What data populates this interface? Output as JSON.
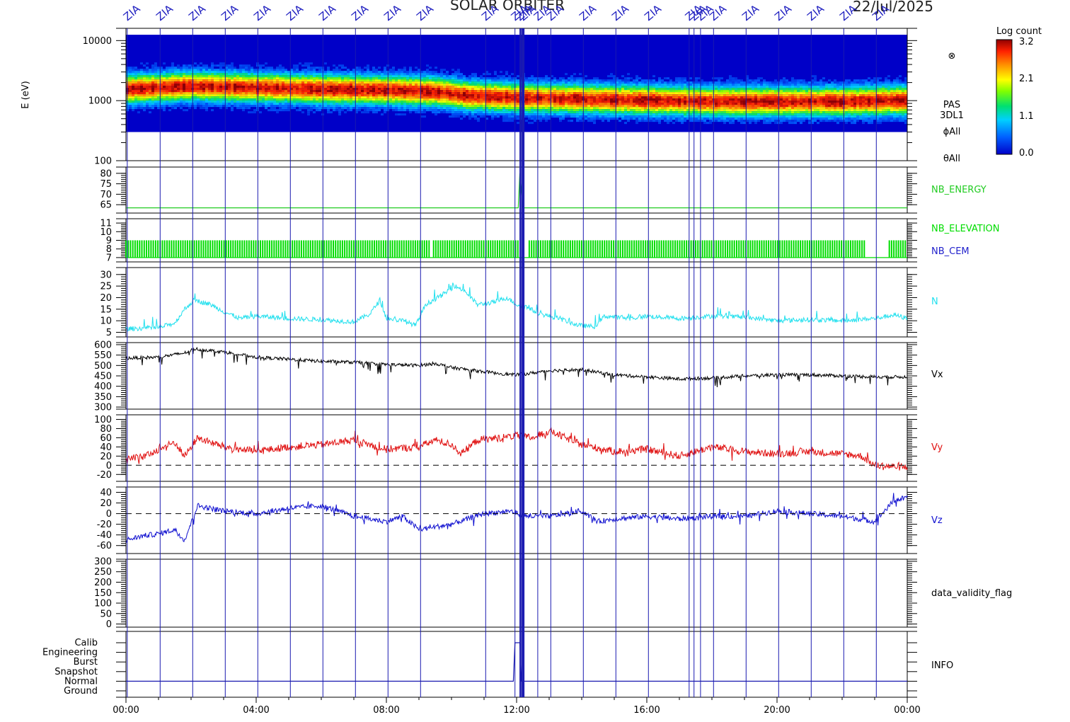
{
  "header": {
    "title": "SOLAR ORBITER",
    "date": "22/Jul/2025",
    "event_label": "ZIA"
  },
  "colorbar": {
    "title": "Log count",
    "ticks": [
      "3.2",
      "2.1",
      "1.1",
      "0.0"
    ]
  },
  "colors": {
    "event_line": "#1a1ab0",
    "nb_energy": "#22cc22",
    "nb_elevation": "#00dd00",
    "nb_cem": "#2222cc",
    "density": "#22e0ee",
    "vx": "#000000",
    "vy": "#e01010",
    "vz": "#1010d0"
  },
  "time_axis": {
    "ticks": [
      "00:00",
      "04:00",
      "08:00",
      "12:00",
      "16:00",
      "20:00",
      "00:00"
    ],
    "start_hour": 0,
    "end_hour": 24
  },
  "event_hours": [
    0.04,
    1.05,
    2.05,
    3.05,
    4.05,
    5.05,
    6.05,
    7.05,
    8.05,
    9.05,
    11.05,
    11.95,
    12.1,
    12.2,
    12.65,
    13.05,
    14.05,
    15.05,
    16.05,
    17.3,
    17.45,
    17.65,
    18.05,
    19.05,
    20.05,
    21.05,
    22.05,
    23.05
  ],
  "chart_data": [
    {
      "type": "heatmap",
      "name": "spectrogram",
      "ylabel": "E (eV)",
      "yscale": "log",
      "ylim": [
        100,
        16000
      ],
      "yticks": [
        "10000",
        "1000",
        "100"
      ],
      "side_labels": [
        "PAS",
        "3DL1",
        "ϕAll",
        "θAll"
      ],
      "peak_energy_ev": [
        [
          0,
          1600
        ],
        [
          2,
          1800
        ],
        [
          4,
          1700
        ],
        [
          6,
          1600
        ],
        [
          8,
          1550
        ],
        [
          9.5,
          1450
        ],
        [
          10.5,
          1250
        ],
        [
          12,
          1150
        ],
        [
          14,
          1100
        ],
        [
          16,
          1050
        ],
        [
          18,
          1000
        ],
        [
          20,
          1000
        ],
        [
          22,
          1000
        ],
        [
          24,
          1050
        ]
      ],
      "pas_marker": "⊗"
    },
    {
      "type": "line",
      "name": "NB_ENERGY",
      "series_label": "NB_ENERGY",
      "ylim": [
        61,
        83
      ],
      "yticks": [
        80,
        75,
        70,
        65
      ],
      "values": [
        [
          0,
          63.5
        ],
        [
          12.05,
          63.5
        ],
        [
          12.1,
          80
        ],
        [
          12.2,
          63.5
        ],
        [
          24,
          63.5
        ]
      ]
    },
    {
      "type": "bar",
      "name": "NB_ELEVATION",
      "series_label": "NB_ELEVATION",
      "secondary_label": "NB_CEM",
      "ylim": [
        6.5,
        11.5
      ],
      "yticks": [
        11,
        10,
        9,
        8,
        7
      ],
      "low": 7,
      "high": 9,
      "gaps": [
        [
          9.35,
          9.45
        ],
        [
          12.05,
          12.35
        ],
        [
          22.75,
          23.4
        ]
      ]
    },
    {
      "type": "line",
      "name": "N",
      "series_label": "N",
      "ylim": [
        3,
        33
      ],
      "yticks": [
        30,
        25,
        20,
        15,
        10,
        5
      ],
      "values": [
        [
          0,
          6.5
        ],
        [
          1,
          7
        ],
        [
          1.5,
          9
        ],
        [
          1.8,
          15
        ],
        [
          2.1,
          19
        ],
        [
          2.6,
          17
        ],
        [
          3,
          14
        ],
        [
          3.5,
          11
        ],
        [
          4,
          12
        ],
        [
          5,
          11
        ],
        [
          6,
          10.5
        ],
        [
          7,
          9.5
        ],
        [
          7.5,
          13
        ],
        [
          7.8,
          19
        ],
        [
          8,
          11
        ],
        [
          8.5,
          10
        ],
        [
          8.9,
          8
        ],
        [
          9.2,
          17
        ],
        [
          9.7,
          21
        ],
        [
          10.1,
          25
        ],
        [
          10.4,
          23
        ],
        [
          10.8,
          17
        ],
        [
          11.3,
          18
        ],
        [
          11.7,
          20
        ],
        [
          12,
          17
        ],
        [
          12.3,
          16
        ],
        [
          12.7,
          13
        ],
        [
          13.3,
          11
        ],
        [
          13.9,
          8
        ],
        [
          14.4,
          7.5
        ],
        [
          14.7,
          12
        ],
        [
          15.5,
          11
        ],
        [
          16,
          12
        ],
        [
          17,
          11
        ],
        [
          18,
          12
        ],
        [
          19,
          11.5
        ],
        [
          20,
          10
        ],
        [
          21,
          10.5
        ],
        [
          22,
          10
        ],
        [
          23,
          11
        ],
        [
          23.6,
          12.5
        ],
        [
          24,
          11
        ]
      ]
    },
    {
      "type": "line",
      "name": "Vx",
      "series_label": "Vx",
      "ylim": [
        290,
        610
      ],
      "yticks": [
        600,
        550,
        500,
        450,
        400,
        350,
        300
      ],
      "values": [
        [
          0,
          535
        ],
        [
          1,
          540
        ],
        [
          1.8,
          560
        ],
        [
          2.1,
          580
        ],
        [
          3,
          565
        ],
        [
          4,
          540
        ],
        [
          5,
          530
        ],
        [
          6,
          520
        ],
        [
          7,
          515
        ],
        [
          8,
          505
        ],
        [
          9,
          500
        ],
        [
          9.5,
          510
        ],
        [
          10,
          490
        ],
        [
          11,
          470
        ],
        [
          11.9,
          455
        ],
        [
          12.3,
          460
        ],
        [
          13,
          475
        ],
        [
          14,
          480
        ],
        [
          15,
          455
        ],
        [
          16,
          445
        ],
        [
          17,
          435
        ],
        [
          18,
          440
        ],
        [
          19,
          450
        ],
        [
          20,
          455
        ],
        [
          21,
          455
        ],
        [
          22,
          450
        ],
        [
          23,
          445
        ],
        [
          24,
          445
        ]
      ]
    },
    {
      "type": "line",
      "name": "Vy",
      "series_label": "Vy",
      "ylim": [
        -35,
        110
      ],
      "yticks": [
        100,
        80,
        60,
        40,
        20,
        0,
        -20
      ],
      "zero_line": 0,
      "values": [
        [
          0,
          20
        ],
        [
          0.5,
          15
        ],
        [
          1,
          35
        ],
        [
          1.5,
          50
        ],
        [
          1.8,
          20
        ],
        [
          2.2,
          60
        ],
        [
          3,
          40
        ],
        [
          4,
          30
        ],
        [
          5,
          40
        ],
        [
          6,
          45
        ],
        [
          7,
          55
        ],
        [
          7.7,
          40
        ],
        [
          8,
          35
        ],
        [
          9,
          40
        ],
        [
          9.5,
          55
        ],
        [
          10,
          45
        ],
        [
          10.3,
          25
        ],
        [
          10.8,
          55
        ],
        [
          11.5,
          60
        ],
        [
          12,
          65
        ],
        [
          12.5,
          60
        ],
        [
          13,
          75
        ],
        [
          14,
          45
        ],
        [
          15,
          30
        ],
        [
          16,
          35
        ],
        [
          17,
          20
        ],
        [
          18,
          40
        ],
        [
          19,
          30
        ],
        [
          20,
          25
        ],
        [
          21,
          30
        ],
        [
          22,
          25
        ],
        [
          22.6,
          20
        ],
        [
          23,
          0
        ],
        [
          24,
          -5
        ]
      ]
    },
    {
      "type": "line",
      "name": "Vz",
      "series_label": "Vz",
      "ylim": [
        -75,
        50
      ],
      "yticks": [
        40,
        20,
        0,
        -20,
        -40,
        -60
      ],
      "zero_line": 0,
      "values": [
        [
          0,
          -50
        ],
        [
          0.5,
          -42
        ],
        [
          1,
          -38
        ],
        [
          1.5,
          -30
        ],
        [
          1.8,
          -50
        ],
        [
          2.2,
          15
        ],
        [
          3,
          5
        ],
        [
          4,
          0
        ],
        [
          5,
          10
        ],
        [
          6,
          15
        ],
        [
          7,
          -5
        ],
        [
          8,
          -15
        ],
        [
          8.5,
          -5
        ],
        [
          9,
          -30
        ],
        [
          9.5,
          -25
        ],
        [
          10,
          -20
        ],
        [
          10.5,
          -10
        ],
        [
          11,
          0
        ],
        [
          11.8,
          5
        ],
        [
          12.3,
          -5
        ],
        [
          13,
          -5
        ],
        [
          14,
          5
        ],
        [
          14.5,
          -15
        ],
        [
          15,
          -10
        ],
        [
          16,
          -5
        ],
        [
          17,
          -10
        ],
        [
          18,
          -5
        ],
        [
          19,
          -5
        ],
        [
          20,
          5
        ],
        [
          21,
          0
        ],
        [
          22,
          -5
        ],
        [
          23,
          -15
        ],
        [
          23.6,
          25
        ],
        [
          24,
          30
        ]
      ]
    },
    {
      "type": "line",
      "name": "data_validity_flag",
      "series_label": "data_validity_flag",
      "ylim": [
        -15,
        310
      ],
      "yticks": [
        300,
        250,
        200,
        150,
        100,
        50,
        0
      ],
      "values": []
    },
    {
      "type": "line",
      "name": "INFO",
      "series_label": "INFO",
      "categories": [
        "Calib",
        "Engineering",
        "Burst",
        "Snapshot",
        "Normal",
        "Ground"
      ],
      "values": [
        [
          0,
          "Normal"
        ],
        [
          11.9,
          "Normal"
        ],
        [
          11.95,
          "Calib"
        ],
        [
          12.1,
          "Calib"
        ],
        [
          12.15,
          "Normal"
        ],
        [
          24,
          "Normal"
        ]
      ]
    }
  ]
}
